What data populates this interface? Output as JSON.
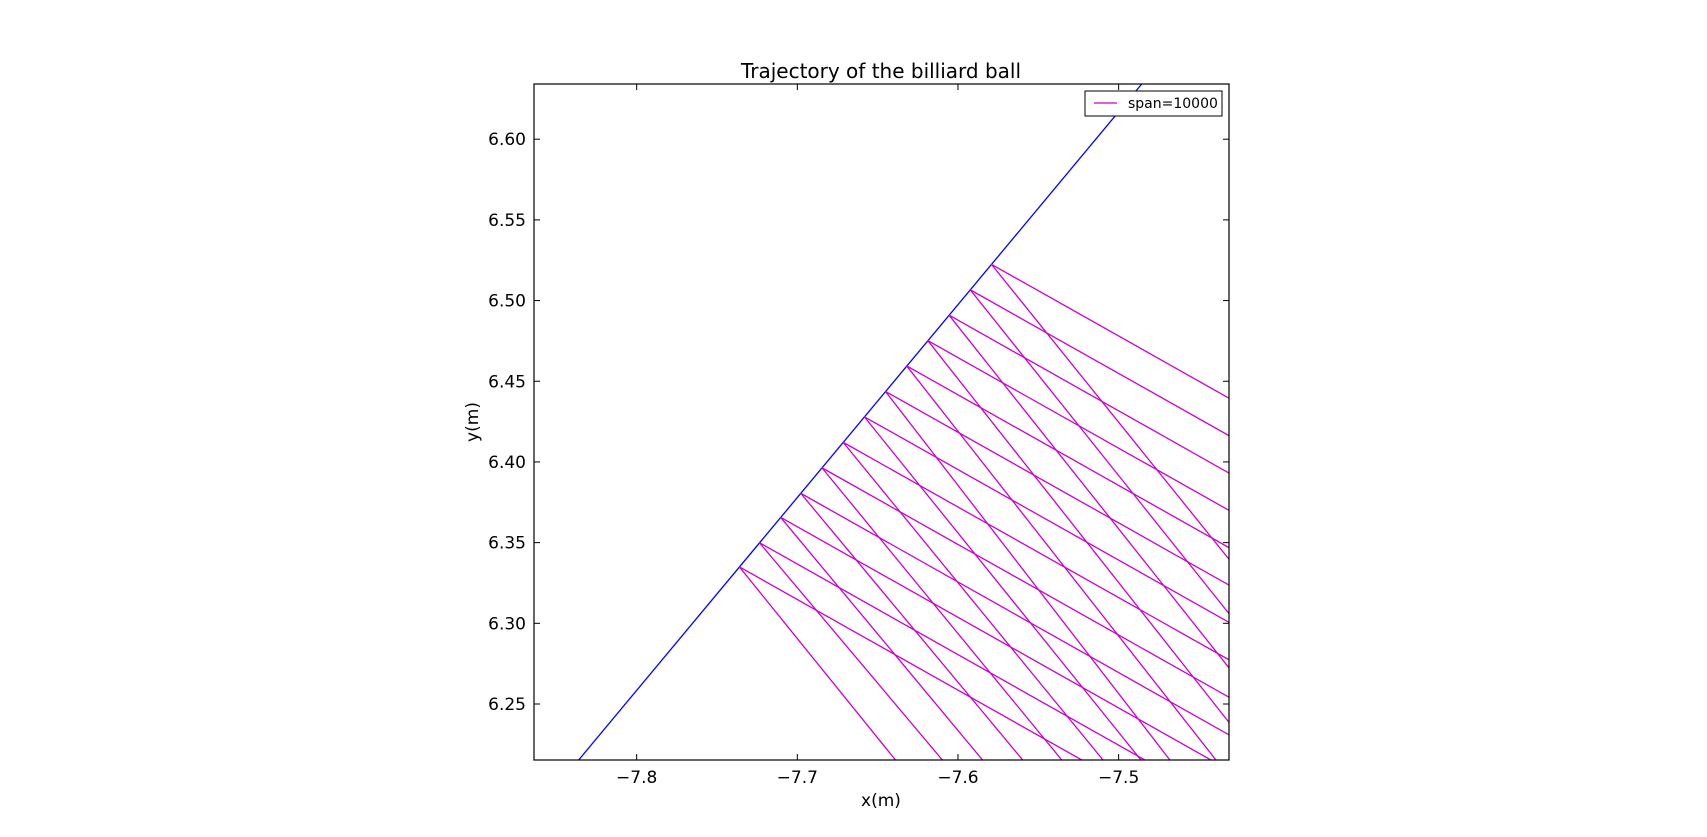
{
  "chart_data": {
    "type": "line",
    "title": "Trajectory of the billiard ball",
    "xlabel": "x(m)",
    "ylabel": "y(m)",
    "xlim": [
      -7.8639,
      -7.4313
    ],
    "ylim": [
      6.2153,
      6.6342
    ],
    "xticks": [
      -7.8,
      -7.7,
      -7.6,
      -7.5
    ],
    "xtick_labels": [
      "−7.8",
      "−7.7",
      "−7.6",
      "−7.5"
    ],
    "yticks": [
      6.25,
      6.3,
      6.35,
      6.4,
      6.45,
      6.5,
      6.55,
      6.6
    ],
    "ytick_labels": [
      "6.25",
      "6.30",
      "6.35",
      "6.40",
      "6.45",
      "6.50",
      "6.55",
      "6.60"
    ],
    "grid": false,
    "legend_position": "top-right",
    "colors": {
      "boundary": "#0000ff",
      "trajectory": "#cc00cc"
    },
    "series": [
      {
        "name": "",
        "role": "boundary",
        "x": [
          -7.8361,
          -7.4856
        ],
        "y": [
          6.2153,
          6.6342
        ]
      },
      {
        "name": "span=10000",
        "role": "trajectory",
        "segments": [
          {
            "x": [
              -7.7361,
              -7.6389
            ],
            "y": [
              6.335,
              6.2153
            ]
          },
          {
            "x": [
              -7.7361,
              -7.4313
            ],
            "y": [
              6.335,
              6.1639
            ]
          },
          {
            "x": [
              -7.7236,
              -7.6097
            ],
            "y": [
              6.35,
              6.2153
            ]
          },
          {
            "x": [
              -7.7236,
              -7.4313
            ],
            "y": [
              6.35,
              6.1859
            ]
          },
          {
            "x": [
              -7.7104,
              -7.5847
            ],
            "y": [
              6.3657,
              6.2153
            ]
          },
          {
            "x": [
              -7.7104,
              -7.4313
            ],
            "y": [
              6.3657,
              6.209
            ]
          },
          {
            "x": [
              -7.6979,
              -7.5597
            ],
            "y": [
              6.3806,
              6.2153
            ]
          },
          {
            "x": [
              -7.6979,
              -7.4313
            ],
            "y": [
              6.3806,
              6.2309
            ]
          },
          {
            "x": [
              -7.6847,
              -7.5354
            ],
            "y": [
              6.3964,
              6.2153
            ]
          },
          {
            "x": [
              -7.6847,
              -7.4313
            ],
            "y": [
              6.3964,
              6.2542
            ]
          },
          {
            "x": [
              -7.6715,
              -7.5097
            ],
            "y": [
              6.4122,
              6.2153
            ]
          },
          {
            "x": [
              -7.6715,
              -7.4313
            ],
            "y": [
              6.4122,
              6.2774
            ]
          },
          {
            "x": [
              -7.6583,
              -7.4861
            ],
            "y": [
              6.428,
              6.2153
            ]
          },
          {
            "x": [
              -7.6583,
              -7.4313
            ],
            "y": [
              6.428,
              6.3006
            ]
          },
          {
            "x": [
              -7.6451,
              -7.4681
            ],
            "y": [
              6.4437,
              6.2153
            ]
          },
          {
            "x": [
              -7.6451,
              -7.4313
            ],
            "y": [
              6.4437,
              6.3237
            ]
          },
          {
            "x": [
              -7.6319,
              -7.4313
            ],
            "y": [
              6.4595,
              6.205
            ]
          },
          {
            "x": [
              -7.6319,
              -7.4313
            ],
            "y": [
              6.4595,
              6.3469
            ]
          },
          {
            "x": [
              -7.6188,
              -7.4313
            ],
            "y": [
              6.4752,
              6.2386
            ]
          },
          {
            "x": [
              -7.6188,
              -7.4313
            ],
            "y": [
              6.4752,
              6.37
            ]
          },
          {
            "x": [
              -7.6056,
              -7.4313
            ],
            "y": [
              6.491,
              6.2724
            ]
          },
          {
            "x": [
              -7.6056,
              -7.4313
            ],
            "y": [
              6.491,
              6.3931
            ]
          },
          {
            "x": [
              -7.5924,
              -7.4313
            ],
            "y": [
              6.5067,
              6.306
            ]
          },
          {
            "x": [
              -7.5924,
              -7.4313
            ],
            "y": [
              6.5067,
              6.4163
            ]
          },
          {
            "x": [
              -7.5792,
              -7.4313
            ],
            "y": [
              6.5225,
              6.3397
            ]
          },
          {
            "x": [
              -7.5792,
              -7.4313
            ],
            "y": [
              6.5225,
              6.4395
            ]
          }
        ]
      }
    ]
  }
}
